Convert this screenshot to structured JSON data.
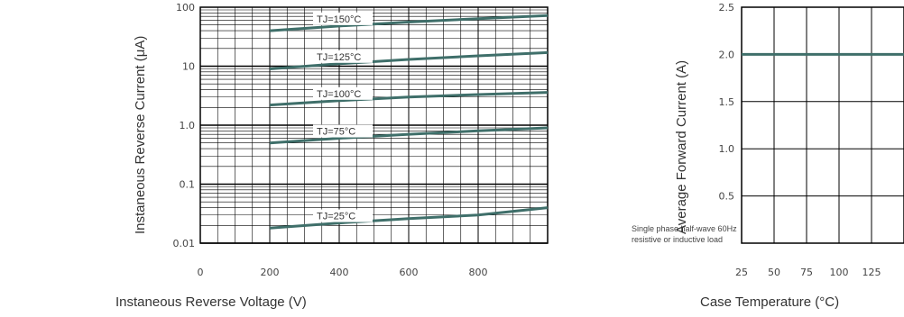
{
  "colors": {
    "curve": "#3f6f6a",
    "grid": "#000000",
    "text": "#333333"
  },
  "chart_data": [
    {
      "type": "line",
      "xlabel": "Instaneous Reverse Voltage (V)",
      "ylabel": "Instaneous Reverse Current (μA)",
      "yscale": "log",
      "xlim": [
        0,
        1000
      ],
      "ylim": [
        0.01,
        100
      ],
      "x_ticks": [
        "0",
        "200",
        "400",
        "600",
        "800"
      ],
      "y_ticks": [
        "0.01",
        "0.1",
        "1.0",
        "10",
        "100"
      ],
      "series": [
        {
          "name": "TJ=150°C",
          "x": [
            200,
            400,
            600,
            800,
            1000
          ],
          "y": [
            40,
            48,
            56,
            64,
            72
          ]
        },
        {
          "name": "TJ=125°C",
          "x": [
            200,
            400,
            600,
            800,
            1000
          ],
          "y": [
            9,
            11,
            13,
            15,
            17
          ]
        },
        {
          "name": "TJ=100°C",
          "x": [
            200,
            400,
            600,
            800,
            1000
          ],
          "y": [
            2.2,
            2.6,
            3.0,
            3.3,
            3.6
          ]
        },
        {
          "name": "TJ=75°C",
          "x": [
            200,
            400,
            600,
            800,
            1000
          ],
          "y": [
            0.5,
            0.6,
            0.7,
            0.8,
            0.9
          ]
        },
        {
          "name": "TJ=25°C",
          "x": [
            200,
            400,
            600,
            800,
            1000
          ],
          "y": [
            0.018,
            0.022,
            0.026,
            0.03,
            0.04
          ]
        }
      ]
    },
    {
      "type": "line",
      "xlabel": "Case Temperature (°C)",
      "ylabel": "Average Forward Current (A)",
      "xlim": [
        25,
        150
      ],
      "ylim": [
        0,
        2.5
      ],
      "x_ticks": [
        "25",
        "50",
        "75",
        "100",
        "125"
      ],
      "y_ticks": [
        "0.5",
        "1.0",
        "1.5",
        "2.0",
        "2.5"
      ],
      "note": [
        "Single phase half-wave 60Hz",
        "resistive or inductive load"
      ],
      "series": [
        {
          "name": "",
          "x": [
            25,
            50,
            75,
            100,
            125,
            150
          ],
          "y": [
            2.0,
            2.0,
            2.0,
            2.0,
            2.0,
            2.0
          ]
        }
      ]
    }
  ]
}
